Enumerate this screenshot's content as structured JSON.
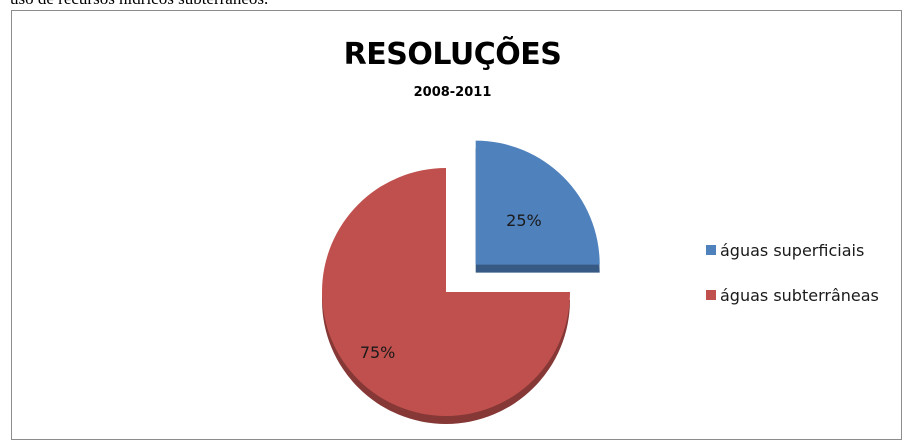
{
  "document": {
    "text_above_chart": "uso de recursos hídricos subterrâneos."
  },
  "chart_data": {
    "type": "pie",
    "title": "RESOLUÇÕES",
    "subtitle": "2008-2011",
    "slices": [
      {
        "label": "águas superficiais",
        "value": 25,
        "data_label": "25%",
        "color": "#4f81bd",
        "exploded": true
      },
      {
        "label": "águas subterrâneas",
        "value": 75,
        "data_label": "75%",
        "color": "#c0504d",
        "exploded": false
      }
    ],
    "legend_position": "right",
    "style": "3d-pie"
  }
}
